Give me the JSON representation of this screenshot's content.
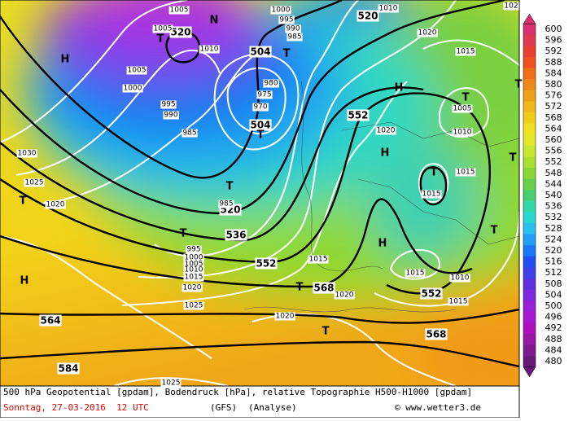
{
  "map": {
    "geopotential_labels": [
      "520",
      "504",
      "504",
      "552",
      "520",
      "536",
      "552",
      "568",
      "552",
      "568",
      "564",
      "584",
      "520"
    ],
    "pressure_labels": [
      "1005",
      "1005",
      "1010",
      "1005",
      "1000",
      "995",
      "990",
      "985",
      "1000",
      "995",
      "990",
      "985",
      "980",
      "975",
      "970",
      "1020",
      "1015",
      "1005",
      "1010",
      "1020",
      "1015",
      "1015",
      "1015",
      "1010",
      "1015",
      "1020",
      "1020",
      "1015",
      "985",
      "995",
      "1000",
      "1005",
      "1010",
      "1015",
      "1020",
      "1025",
      "1030",
      "1025",
      "1020",
      "1025",
      "1010",
      "102"
    ],
    "markers": [
      "N",
      "T",
      "H",
      "T",
      "T",
      "H",
      "T",
      "H",
      "T",
      "T",
      "T",
      "T",
      "H",
      "T",
      "T",
      "T",
      "T",
      "T",
      "H"
    ]
  },
  "color_scale": {
    "ticks": [
      600,
      596,
      592,
      588,
      584,
      580,
      576,
      572,
      568,
      564,
      560,
      556,
      552,
      548,
      544,
      540,
      536,
      532,
      528,
      524,
      520,
      516,
      512,
      508,
      504,
      500,
      496,
      492,
      488,
      484,
      480
    ]
  },
  "footer": {
    "description": "500 hPa Geopotential [gpdam], Bodendruck [hPa], relative Topographie H500-H1000 [gpdam]",
    "date": "Sonntag, 27-03-2016  12 UTC",
    "model": "(GFS)",
    "run": "(Analyse)",
    "credit": "© www.wetter3.de"
  }
}
